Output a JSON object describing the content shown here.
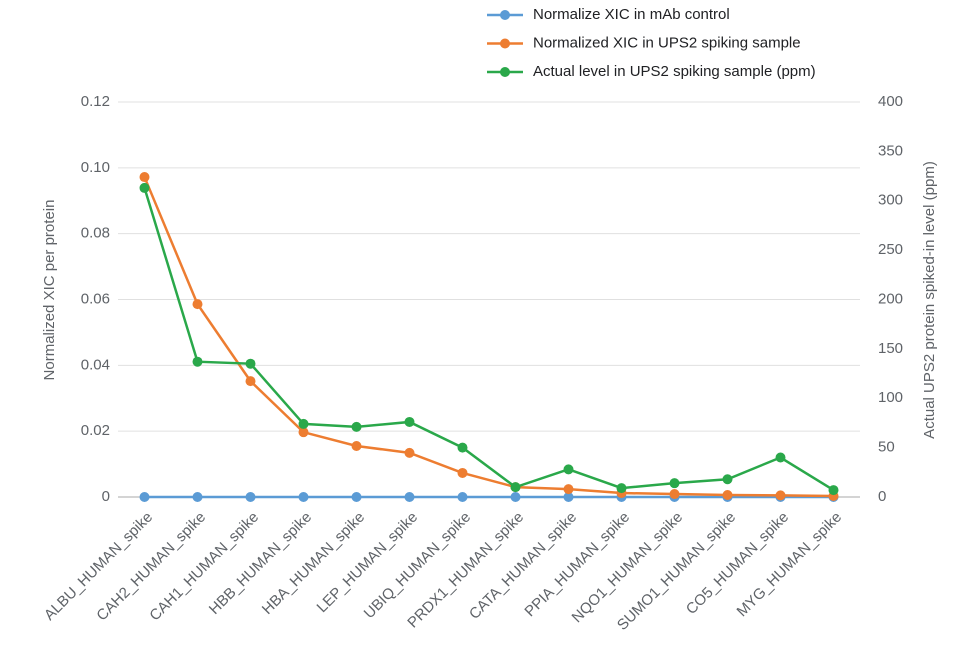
{
  "chart_data": {
    "type": "line",
    "categories": [
      "ALBU_HUMAN_spike",
      "CAH2_HUMAN_spike",
      "CAH1_HUMAN_spike",
      "HBB_HUMAN_spike",
      "HBA_HUMAN_spike",
      "LEP_HUMAN_spike",
      "UBIQ_HUMAN_spike",
      "PRDX1_HUMAN_spike",
      "CATA_HUMAN_spike",
      "PPIA_HUMAN_spike",
      "NQO1_HUMAN_spike",
      "SUMO1_HUMAN_spike",
      "CO5_HUMAN_spike",
      "MYG_HUMAN_spike"
    ],
    "series": [
      {
        "name": "Normalize XIC in mAb control",
        "color": "#5b9bd5",
        "values": [
          0,
          0,
          0,
          0,
          0,
          0,
          0,
          0,
          0,
          0,
          0,
          0,
          0,
          0
        ]
      },
      {
        "name": "Normalized XIC in UPS2 spiking sample",
        "color": "#ed7d31",
        "values": [
          0.0972,
          0.0586,
          0.0352,
          0.0197,
          0.0155,
          0.0134,
          0.0073,
          0.003,
          0.0024,
          0.0012,
          0.0009,
          0.0006,
          0.0005,
          0.0003
        ]
      },
      {
        "name": "Actual level in UPS2 spiking sample (ppm)",
        "color": "#2aa84a",
        "axis": "y2",
        "values": [
          313,
          137,
          135,
          74,
          71,
          76,
          50,
          10,
          28,
          9,
          14,
          18,
          40,
          7
        ]
      }
    ],
    "y_label": "Normalized XIC per protein",
    "y2_label": "Actual UPS2 protein spiked-in level (ppm)",
    "ylim": [
      0,
      0.12
    ],
    "yticks": [
      0,
      0.02,
      0.04,
      0.06,
      0.08,
      {
        "value": 0.1,
        "label": "0.10"
      },
      0.12
    ],
    "y2lim": [
      0,
      400
    ],
    "y2ticks": [
      0,
      50,
      100,
      150,
      200,
      250,
      300,
      350,
      400
    ],
    "grid": true,
    "legend": "top-right"
  }
}
